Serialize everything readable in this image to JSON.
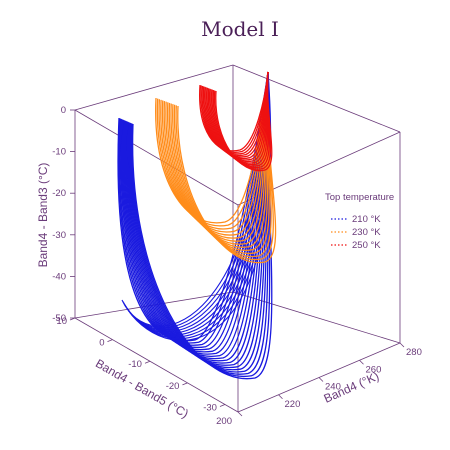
{
  "chart_data": {
    "type": "line",
    "title": "Model I",
    "xlabel": "Band4 - Band5 (°C)",
    "ylabel": "Band4 (°K)",
    "zlabel": "Band4 - Band3 (°C)",
    "x_ticks": [
      "10",
      "0",
      "-10",
      "-20",
      "-30"
    ],
    "y_ticks": [
      "200",
      "220",
      "240",
      "260",
      "280"
    ],
    "z_ticks": [
      "0",
      "-10",
      "-20",
      "-30",
      "-40",
      "-50"
    ],
    "xlim": [
      10,
      -30
    ],
    "ylim": [
      200,
      280
    ],
    "zlim": [
      -50,
      0
    ],
    "legend": {
      "title": "Top temperature",
      "placement": "right",
      "entries": [
        {
          "label": "210 °K",
          "color": "#1a1adf"
        },
        {
          "label": "230 °K",
          "color": "#ff8c1a"
        },
        {
          "label": "250 °K",
          "color": "#ee1111"
        }
      ]
    },
    "series": [
      {
        "name": "210 °K",
        "color": "#1a1adf",
        "top_temperature": 210,
        "curve_count": 18
      },
      {
        "name": "230 °K",
        "color": "#ff8c1a",
        "top_temperature": 230,
        "curve_count": 14
      },
      {
        "name": "250 °K",
        "color": "#ee1111",
        "top_temperature": 250,
        "curve_count": 14
      }
    ]
  }
}
